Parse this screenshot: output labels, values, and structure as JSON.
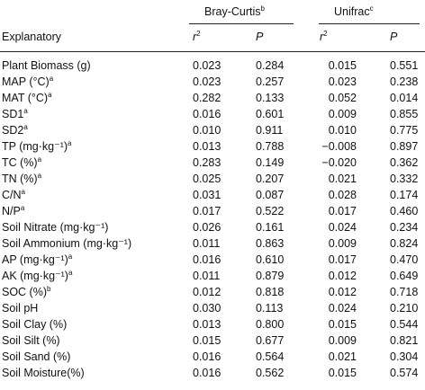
{
  "header": {
    "group1": "Bray-Curtis",
    "group1_sup": "b",
    "group2": "Unifrac",
    "group2_sup": "c",
    "explanatory": "Explanatory",
    "r2_base": "r",
    "r2_sup": "2",
    "p_label": "P"
  },
  "rows": [
    {
      "label": "Plant Biomass (g)",
      "sup": "",
      "bc_r2": "0.023",
      "bc_p": "0.284",
      "uf_r2": "0.015",
      "uf_p": "0.551"
    },
    {
      "label": "MAP (°C)",
      "sup": "a",
      "bc_r2": "0.023",
      "bc_p": "0.257",
      "uf_r2": "0.023",
      "uf_p": "0.238"
    },
    {
      "label": "MAT (°C)",
      "sup": "a",
      "bc_r2": "0.282",
      "bc_p": "0.133",
      "uf_r2": "0.052",
      "uf_p": "0.014"
    },
    {
      "label": "SD1",
      "sup": "a",
      "bc_r2": "0.016",
      "bc_p": "0.601",
      "uf_r2": "0.009",
      "uf_p": "0.855"
    },
    {
      "label": "SD2",
      "sup": "a",
      "bc_r2": "0.010",
      "bc_p": "0.911",
      "uf_r2": "0.010",
      "uf_p": "0.775"
    },
    {
      "label": "TP (mg·kg⁻¹)",
      "sup": "a",
      "bc_r2": "0.013",
      "bc_p": "0.788",
      "uf_r2": "−0.008",
      "uf_p": "0.897"
    },
    {
      "label": "TC (%)",
      "sup": "a",
      "bc_r2": "0.283",
      "bc_p": "0.149",
      "uf_r2": "−0.020",
      "uf_p": "0.362"
    },
    {
      "label": "TN (%)",
      "sup": "a",
      "bc_r2": "0.025",
      "bc_p": "0.207",
      "uf_r2": "0.021",
      "uf_p": "0.332"
    },
    {
      "label": "C/N",
      "sup": "a",
      "bc_r2": "0.031",
      "bc_p": "0.087",
      "uf_r2": "0.028",
      "uf_p": "0.174"
    },
    {
      "label": "N/P",
      "sup": "a",
      "bc_r2": "0.017",
      "bc_p": "0.522",
      "uf_r2": "0.017",
      "uf_p": "0.460"
    },
    {
      "label": "Soil Nitrate (mg·kg⁻¹)",
      "sup": "",
      "bc_r2": "0.026",
      "bc_p": "0.161",
      "uf_r2": "0.024",
      "uf_p": "0.234"
    },
    {
      "label": "Soil Ammonium (mg·kg⁻¹)",
      "sup": "",
      "bc_r2": "0.011",
      "bc_p": "0.863",
      "uf_r2": "0.009",
      "uf_p": "0.824"
    },
    {
      "label": "AP (mg·kg⁻¹)",
      "sup": "a",
      "bc_r2": "0.016",
      "bc_p": "0.610",
      "uf_r2": "0.017",
      "uf_p": "0.470"
    },
    {
      "label": "AK (mg·kg⁻¹)",
      "sup": "a",
      "bc_r2": "0.011",
      "bc_p": "0.879",
      "uf_r2": "0.012",
      "uf_p": "0.649"
    },
    {
      "label": "SOC (%)",
      "sup": "b",
      "bc_r2": "0.012",
      "bc_p": "0.818",
      "uf_r2": "0.012",
      "uf_p": "0.718"
    },
    {
      "label": "Soil pH",
      "sup": "",
      "bc_r2": "0.030",
      "bc_p": "0.113",
      "uf_r2": "0.024",
      "uf_p": "0.210"
    },
    {
      "label": "Soil Clay (%)",
      "sup": "",
      "bc_r2": "0.013",
      "bc_p": "0.800",
      "uf_r2": "0.015",
      "uf_p": "0.544"
    },
    {
      "label": "Soil Silt (%)",
      "sup": "",
      "bc_r2": "0.015",
      "bc_p": "0.677",
      "uf_r2": "0.009",
      "uf_p": "0.821"
    },
    {
      "label": "Soil Sand (%)",
      "sup": "",
      "bc_r2": "0.016",
      "bc_p": "0.564",
      "uf_r2": "0.021",
      "uf_p": "0.304"
    },
    {
      "label": "Soil Moisture(%)",
      "sup": "",
      "bc_r2": "0.016",
      "bc_p": "0.562",
      "uf_r2": "0.015",
      "uf_p": "0.574"
    }
  ]
}
